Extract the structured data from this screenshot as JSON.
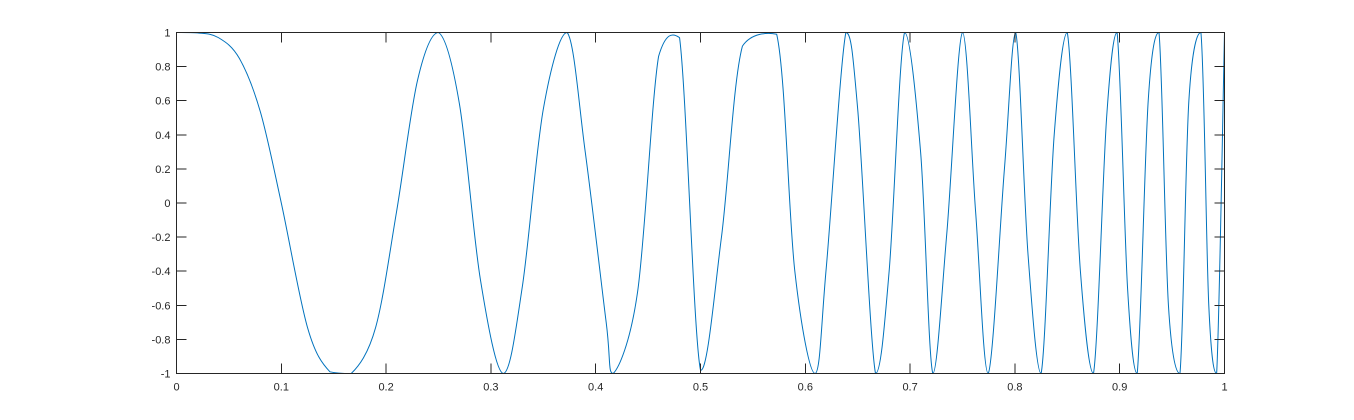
{
  "chart_data": {
    "type": "line",
    "title": "",
    "xlabel": "",
    "ylabel": "",
    "xlim": [
      0,
      1
    ],
    "ylim": [
      -1,
      1
    ],
    "grid": false,
    "box": true,
    "x_ticks": [
      0,
      0.1,
      0.2,
      0.3,
      0.4,
      0.5,
      0.6,
      0.7,
      0.8,
      0.9,
      1
    ],
    "x_tick_labels": [
      "0",
      "0.1",
      "0.2",
      "0.3",
      "0.4",
      "0.5",
      "0.6",
      "0.7",
      "0.8",
      "0.9",
      "1"
    ],
    "y_ticks": [
      -1,
      -0.8,
      -0.6,
      -0.4,
      -0.2,
      0,
      0.2,
      0.4,
      0.6,
      0.8,
      1
    ],
    "y_tick_labels": [
      "-1",
      "-0.8",
      "-0.6",
      "-0.4",
      "-0.2",
      "0",
      "0.2",
      "0.4",
      "0.6",
      "0.8",
      "1"
    ],
    "series": [
      {
        "color": "#0072BD",
        "x": [
          0.0,
          0.02,
          0.04,
          0.06,
          0.08,
          0.1,
          0.125,
          0.1464,
          0.1667,
          0.19,
          0.21,
          0.23,
          0.25,
          0.27,
          0.29,
          0.3118,
          0.33,
          0.35,
          0.3727,
          0.39,
          0.41,
          0.4167,
          0.44,
          0.46,
          0.48,
          0.5,
          0.52,
          0.54,
          0.5727,
          0.59,
          0.6093,
          0.62,
          0.6387,
          0.65,
          0.667,
          0.68,
          0.6947,
          0.71,
          0.7217,
          0.735,
          0.75,
          0.7625,
          0.7745,
          0.79,
          0.8008,
          0.8125,
          0.825,
          0.8375,
          0.85,
          0.8625,
          0.875,
          0.8875,
          0.8975,
          0.9075,
          0.9167,
          0.9272,
          0.9375,
          0.9465,
          0.9575,
          0.966,
          0.9775,
          0.985,
          0.9925,
          1.0
        ],
        "y": [
          1.0,
          0.998,
          0.97,
          0.848,
          0.535,
          0.0,
          -0.73,
          -0.99,
          -1.0,
          -0.73,
          -0.05,
          0.72,
          1.0,
          0.58,
          -0.45,
          -1.0,
          -0.49,
          0.55,
          1.0,
          0.3,
          -0.7,
          -1.0,
          -0.52,
          0.86,
          0.97,
          -0.98,
          -0.2,
          0.92,
          0.99,
          -0.4,
          -1.0,
          -0.38,
          1.0,
          0.55,
          -1.0,
          -0.4,
          1.0,
          0.3,
          -1.0,
          -0.18,
          1.0,
          -0.05,
          -1.0,
          0.2,
          1.0,
          -0.3,
          -1.0,
          0.4,
          1.0,
          -0.4,
          -1.0,
          0.5,
          1.0,
          -0.5,
          -1.0,
          0.6,
          1.0,
          -0.6,
          -1.0,
          0.6,
          1.0,
          -0.6,
          -1.0,
          1.0
        ]
      }
    ]
  }
}
